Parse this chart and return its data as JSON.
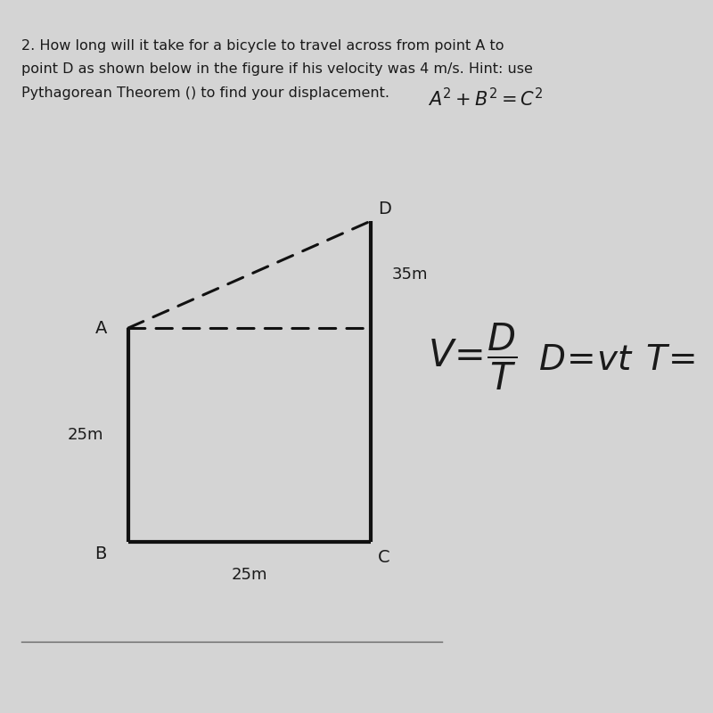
{
  "bg_color": "#d4d4d4",
  "text_color": "#1a1a1a",
  "question_line1": "2. How long will it take for a bicycle to travel across from point A to",
  "question_line2": "point D as shown below in the figure if his velocity was 4 m/s. Hint: use",
  "question_line3": "Pythagorean Theorem () to find your displacement.",
  "points": {
    "B": [
      0.18,
      0.24
    ],
    "C": [
      0.52,
      0.24
    ],
    "A": [
      0.18,
      0.54
    ],
    "D": [
      0.52,
      0.69
    ]
  },
  "label_25m_left": "25m",
  "label_25m_bottom": "25m",
  "label_35m_right": "35m"
}
